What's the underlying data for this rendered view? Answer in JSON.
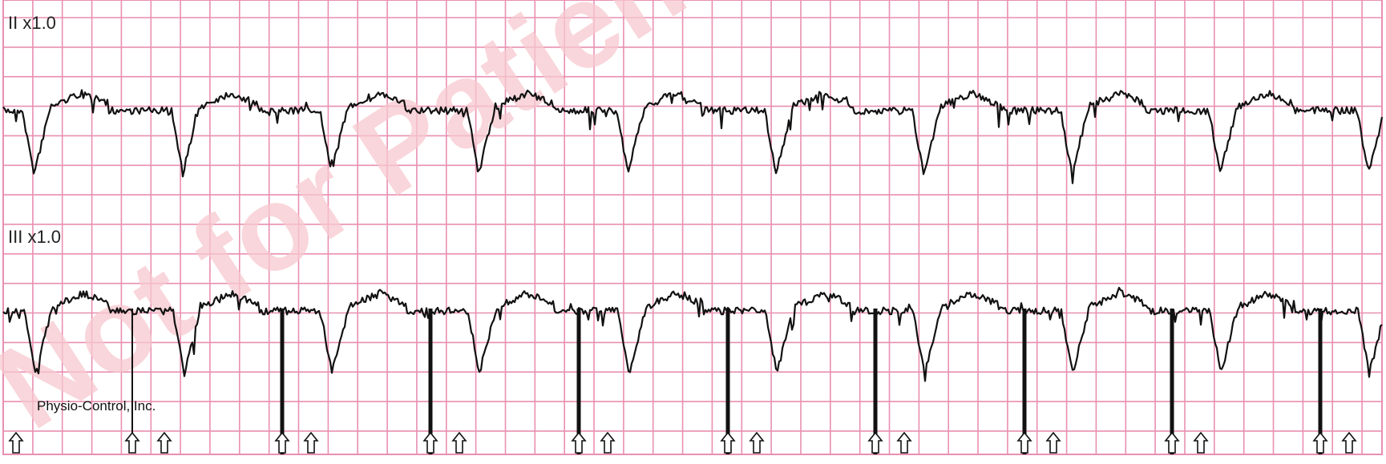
{
  "colors": {
    "grid_major": "#e98fb1",
    "grid_minor": "#f5c4d6",
    "trace": "#111111",
    "watermark": "#f7c9cf",
    "background": "#ffffff"
  },
  "leads": [
    {
      "label": "II x1.0"
    },
    {
      "label": "III x1.0"
    }
  ],
  "vendor": "Physio-Control, Inc.",
  "watermark": "Not for Patient",
  "chart_data": {
    "type": "line",
    "title": "",
    "grid": true,
    "series": [
      {
        "name": "II x1.0",
        "qrs_beats_count": 10,
        "baseline": 0
      },
      {
        "name": "III x1.0",
        "qrs_beats_count": 10,
        "baseline": 0
      }
    ],
    "pacing_marker_icon": "up-arrow-icon",
    "pacing_marker_count": 19
  }
}
